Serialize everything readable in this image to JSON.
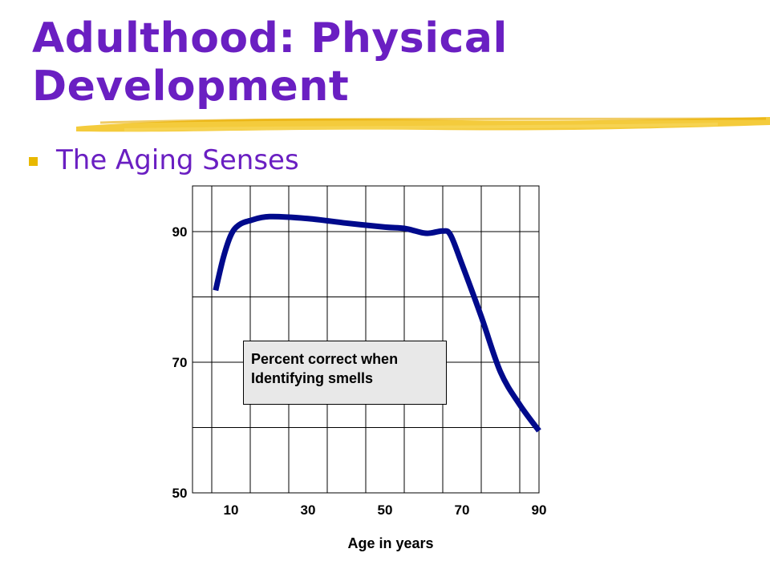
{
  "slide": {
    "title_line1": "Adulthood: Physical",
    "title_line2": "Development",
    "bullet": "The Aging Senses",
    "colors": {
      "title": "#6a1fc2",
      "bullet": "#e8b800",
      "highlighter": "#f2c21a",
      "line": "#000a8c"
    }
  },
  "chart_data": {
    "type": "line",
    "title": "",
    "xlabel": "Age in years",
    "ylabel": "",
    "x_ticks": [
      "10",
      "30",
      "50",
      "70",
      "90"
    ],
    "y_ticks": [
      "50",
      "70",
      "90"
    ],
    "xlim": [
      0,
      90
    ],
    "ylim": [
      50,
      97
    ],
    "grid": true,
    "annotation": [
      "Percent correct when",
      "Identifying smells"
    ],
    "series": [
      {
        "x": [
          6,
          8,
          10,
          12,
          15,
          20,
          30,
          40,
          50,
          55,
          60,
          62,
          65,
          67,
          70,
          75,
          80,
          85,
          90
        ],
        "y": [
          81,
          86,
          89.5,
          91,
          91.7,
          92.3,
          92,
          91.3,
          90.7,
          90.5,
          89.8,
          89.8,
          90.1,
          89.5,
          85,
          77,
          68.5,
          63.5,
          59.5
        ]
      }
    ]
  }
}
